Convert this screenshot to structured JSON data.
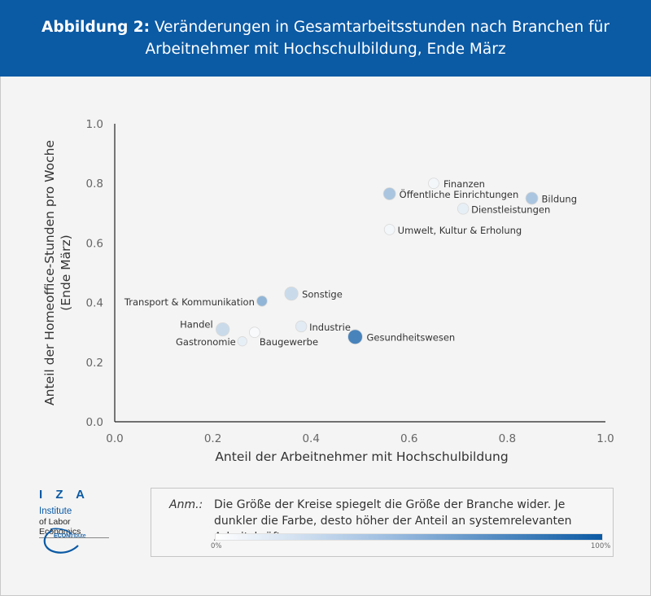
{
  "header": {
    "title_bold": "Abbildung 2:",
    "title_rest": "Veränderungen in Gesamtarbeitsstunden nach Branchen für",
    "title_line2": "Arbeitnehmer mit Hochschulbildung, Ende März"
  },
  "colors": {
    "brand": "#0b5aa4",
    "header_text": "#ffffff",
    "scale_low": "#ffffff",
    "scale_high": "#0b5aa4"
  },
  "chart_data": {
    "type": "scatter",
    "xlabel": "Anteil der Arbeitnehmer mit Hochschulbildung",
    "ylabel_line1": "Anteil der Homeoffice-Stunden pro Woche",
    "ylabel_line2": "(Ende März)",
    "xlim": [
      0.0,
      1.0
    ],
    "ylim": [
      0.0,
      1.0
    ],
    "xticks": [
      "0.0",
      "0.2",
      "0.4",
      "0.6",
      "0.8",
      "1.0"
    ],
    "yticks": [
      "0.0",
      "0.2",
      "0.4",
      "0.6",
      "0.8",
      "1.0"
    ],
    "grid": false,
    "points": [
      {
        "label": "Finanzen",
        "x": 0.65,
        "y": 0.8,
        "size": 0.35,
        "shade": 0.05
      },
      {
        "label": "Öffentliche Einrichtungen",
        "x": 0.56,
        "y": 0.765,
        "size": 0.5,
        "shade": 0.35
      },
      {
        "label": "Bildung",
        "x": 0.85,
        "y": 0.75,
        "size": 0.5,
        "shade": 0.35
      },
      {
        "label": "Dienstleistungen",
        "x": 0.71,
        "y": 0.715,
        "size": 0.4,
        "shade": 0.1
      },
      {
        "label": "Umwelt, Kultur & Erholung",
        "x": 0.56,
        "y": 0.645,
        "size": 0.35,
        "shade": 0.05
      },
      {
        "label": "Sonstige",
        "x": 0.36,
        "y": 0.43,
        "size": 0.6,
        "shade": 0.22
      },
      {
        "label": "Transport & Kommunikation",
        "x": 0.3,
        "y": 0.405,
        "size": 0.35,
        "shade": 0.45
      },
      {
        "label": "Industrie",
        "x": 0.38,
        "y": 0.32,
        "size": 0.4,
        "shade": 0.12
      },
      {
        "label": "Handel",
        "x": 0.22,
        "y": 0.31,
        "size": 0.6,
        "shade": 0.22
      },
      {
        "label": "Baugewerbe",
        "x": 0.285,
        "y": 0.3,
        "size": 0.35,
        "shade": 0.03
      },
      {
        "label": "Gesundheitswesen",
        "x": 0.49,
        "y": 0.285,
        "size": 0.7,
        "shade": 0.75
      },
      {
        "label": "Gastronomie",
        "x": 0.26,
        "y": 0.27,
        "size": 0.25,
        "shade": 0.1
      }
    ]
  },
  "note": {
    "label": "Anm.:",
    "text": "Die Größe der Kreise spiegelt die Größe der Branche wider. Je dunkler die Farbe, desto höher der Anteil an systemrelevanten Arbeitskräften.",
    "scale_min": "0%",
    "scale_max": "100%"
  },
  "logos": {
    "iza_letters": "I Z A",
    "iza_institute": "Institute",
    "iza_line2": "of Labor Economics",
    "econ_bold": "ECON",
    "econ_rest": "tribute"
  }
}
